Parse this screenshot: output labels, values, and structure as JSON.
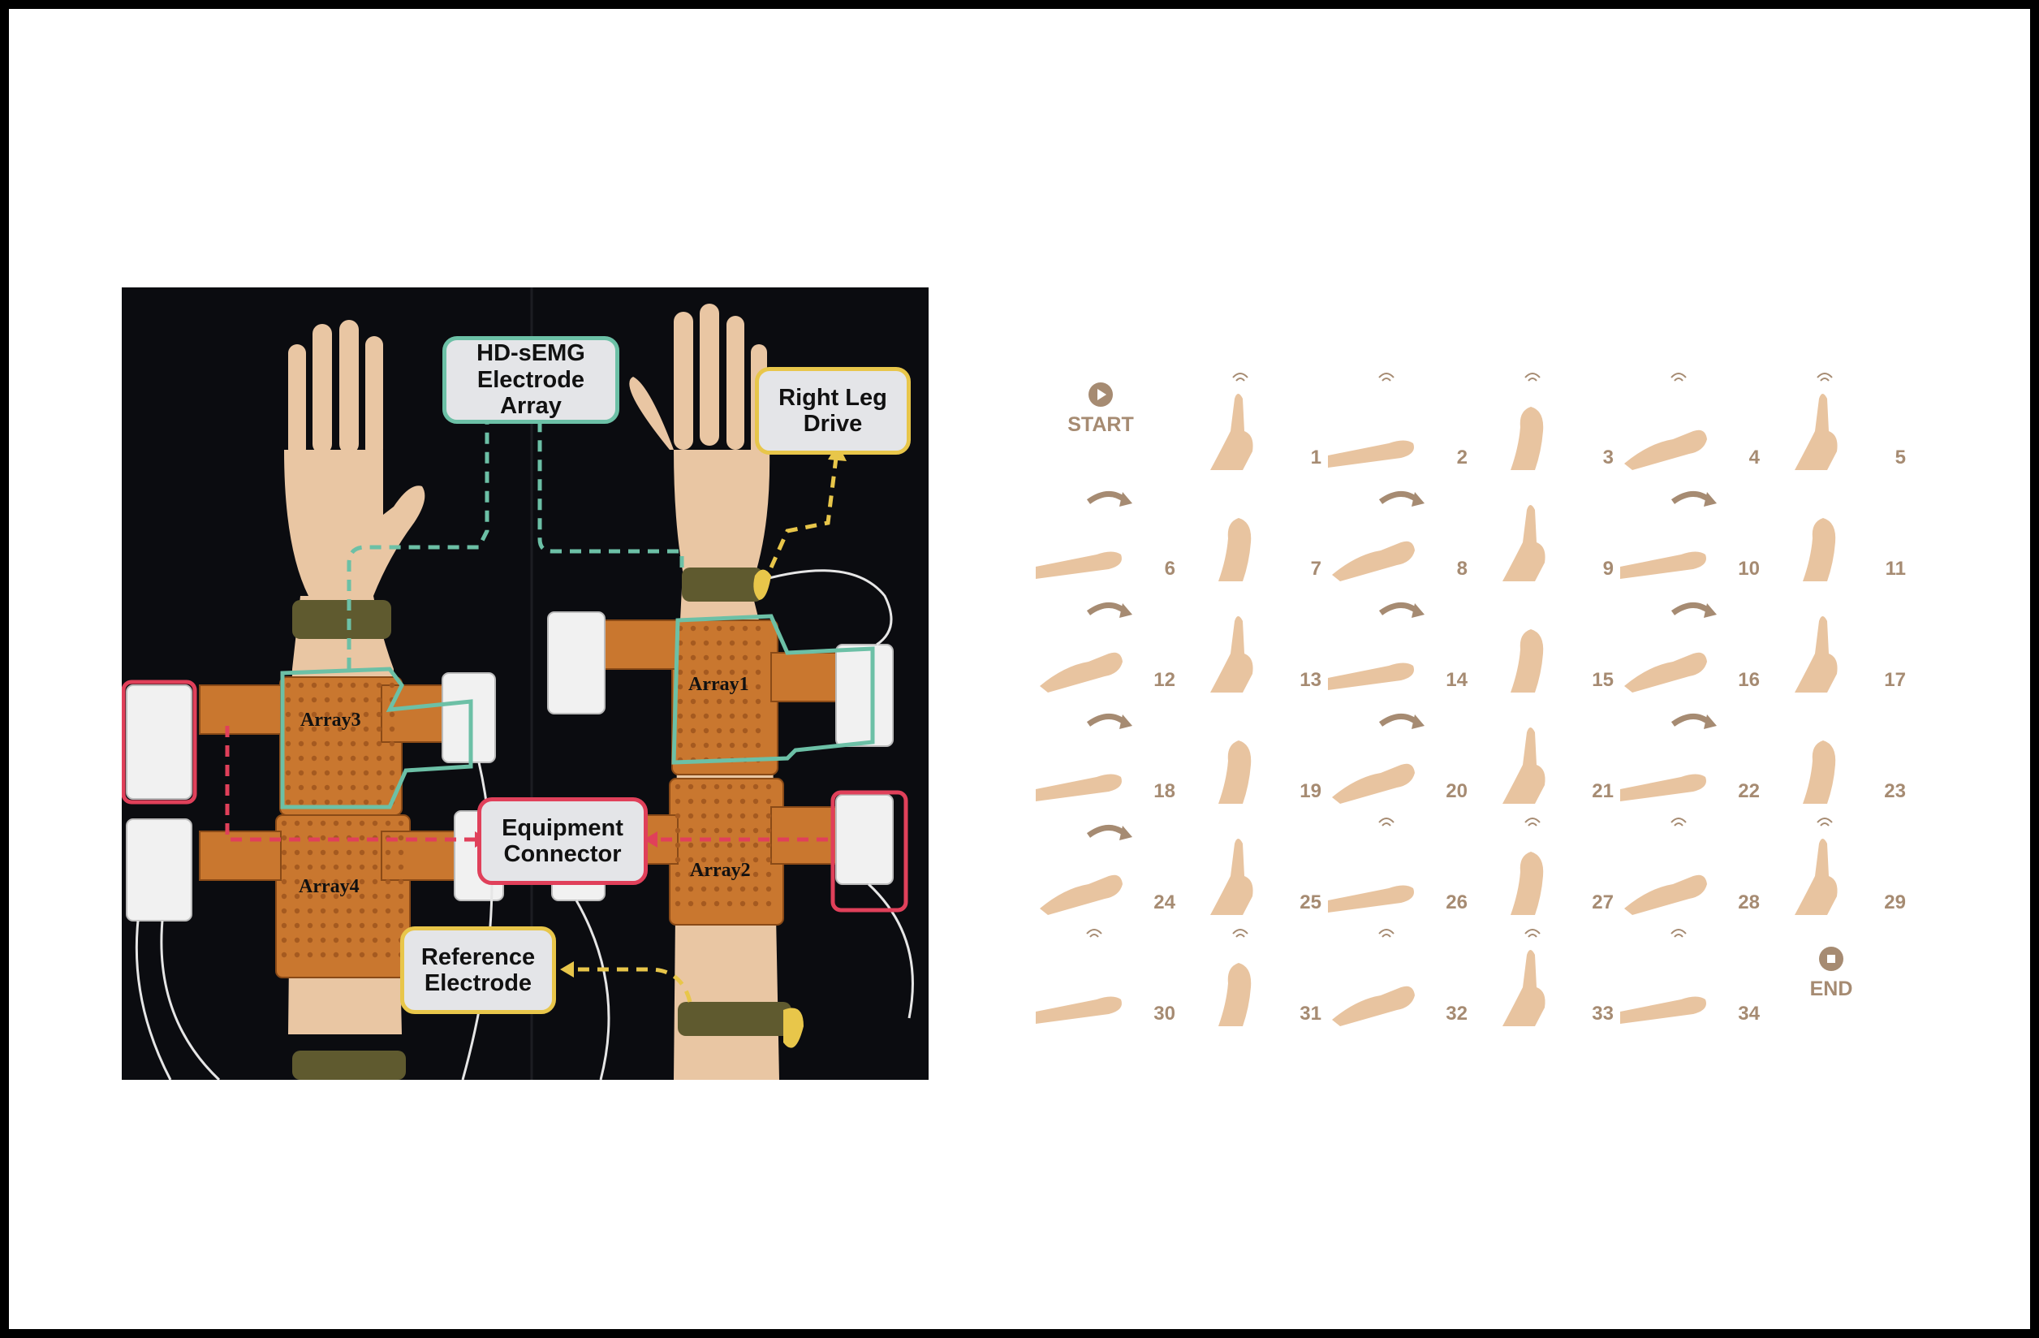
{
  "photo": {
    "labels": {
      "hd_semg": "HD-sEMG\nElectrode\nArray",
      "right_leg": "Right Leg\nDrive",
      "equipment": "Equipment\nConnector",
      "reference": "Reference\nElectrode"
    },
    "arrays": [
      "Array1",
      "Array2",
      "Array3",
      "Array4"
    ],
    "colors": {
      "electrode_border": "#6cc0a6",
      "right_leg_border": "#e8c64a",
      "connector_border": "#e0405a",
      "reference_border": "#e8c64a",
      "skin": "#e9c6a3",
      "electrode_sheet": "#c9772f",
      "strap": "#5f5a2f"
    }
  },
  "gestures": {
    "start_label": "START",
    "end_label": "END",
    "numbers": [
      "1",
      "2",
      "3",
      "4",
      "5",
      "6",
      "7",
      "8",
      "9",
      "10",
      "11",
      "12",
      "13",
      "14",
      "15",
      "16",
      "17",
      "18",
      "19",
      "20",
      "21",
      "22",
      "23",
      "24",
      "25",
      "26",
      "27",
      "28",
      "29",
      "30",
      "31",
      "32",
      "33",
      "34"
    ],
    "color": "#a68b72",
    "hand_color": "#e8c4a0"
  }
}
